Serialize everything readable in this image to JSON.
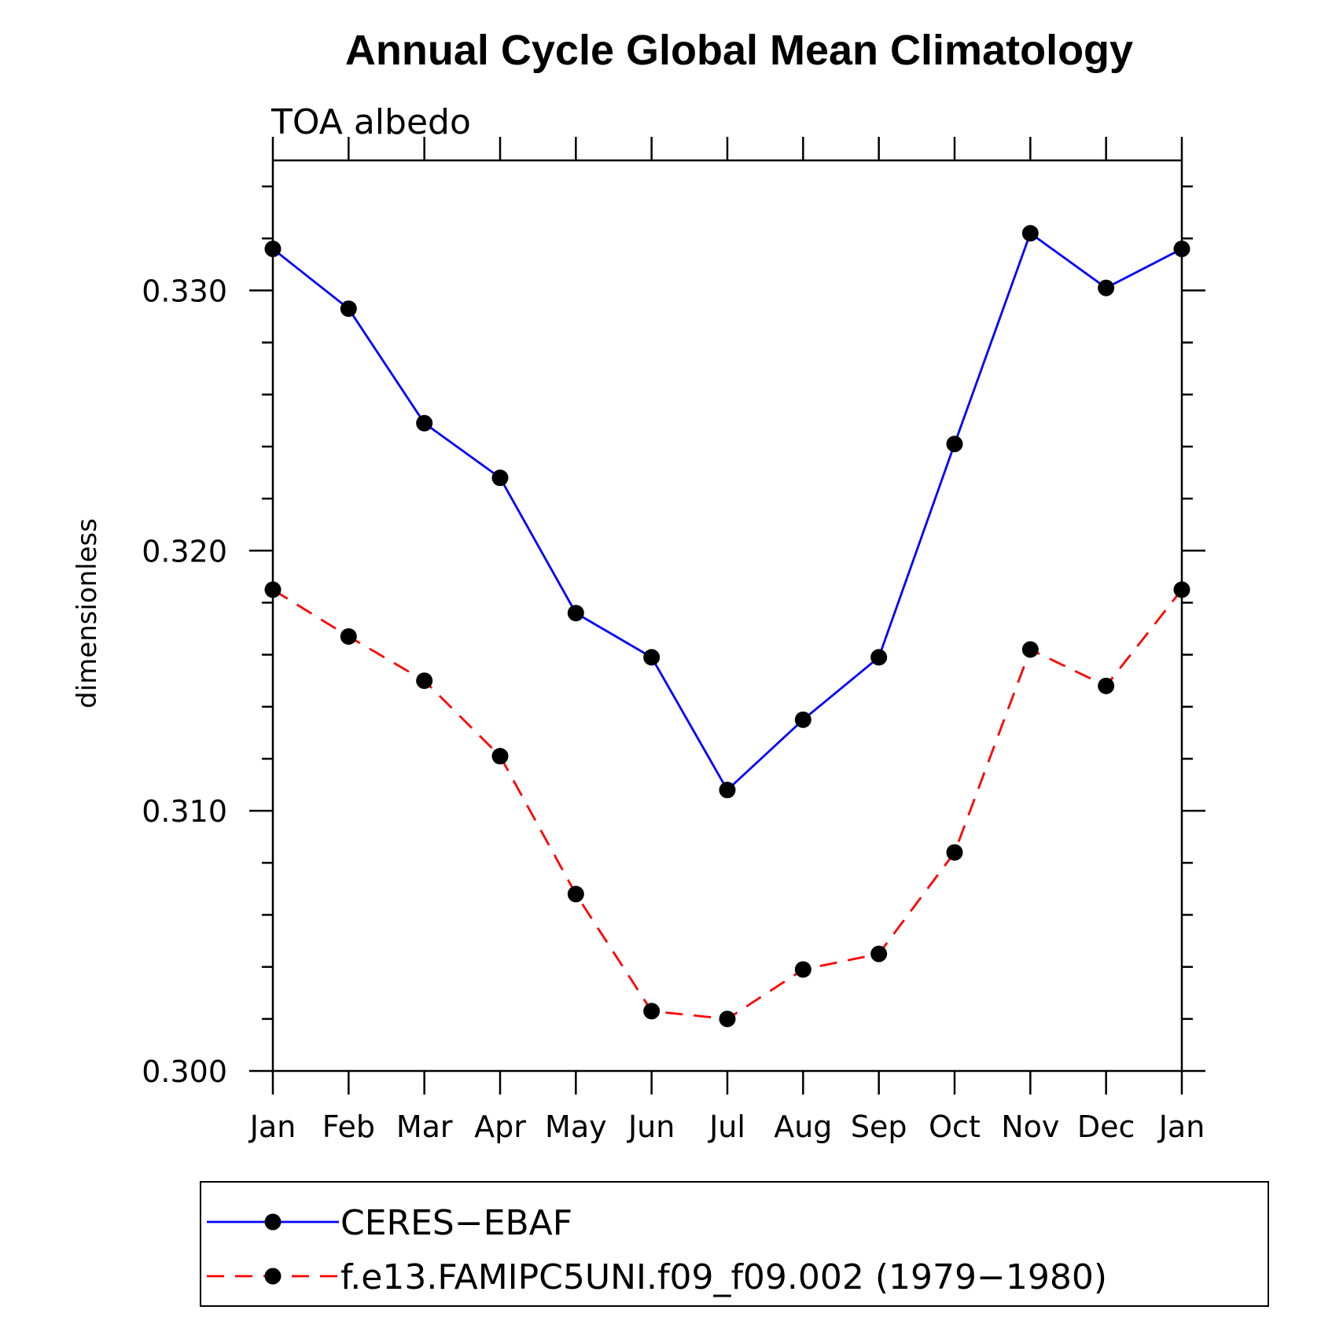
{
  "chart_data": {
    "type": "line",
    "title": "Annual Cycle Global Mean Climatology",
    "subtitle": "TOA albedo",
    "xlabel": "",
    "ylabel": "dimensionless",
    "categories": [
      "Jan",
      "Feb",
      "Mar",
      "Apr",
      "May",
      "Jun",
      "Jul",
      "Aug",
      "Sep",
      "Oct",
      "Nov",
      "Dec",
      "Jan"
    ],
    "yticks": [
      "0.300",
      "0.310",
      "0.320",
      "0.330"
    ],
    "ylim": [
      0.3,
      0.335
    ],
    "grid": false,
    "legend_position": "bottom",
    "series": [
      {
        "name": "CERES−EBAF",
        "color": "#0000ff",
        "line_style": "solid",
        "marker": "filled-circle",
        "values": [
          0.3316,
          0.3293,
          0.3249,
          0.3228,
          0.3176,
          0.3159,
          0.3108,
          0.3135,
          0.3159,
          0.3241,
          0.3322,
          0.3301,
          0.3316
        ]
      },
      {
        "name": "f.e13.FAMIPC5UNI.f09_f09.002 (1979−1980)",
        "color": "#ff0000",
        "line_style": "dashed",
        "marker": "filled-circle",
        "values": [
          0.3185,
          0.3167,
          0.315,
          0.3121,
          0.3068,
          0.3023,
          0.302,
          0.3039,
          0.3045,
          0.3084,
          0.3162,
          0.3148,
          0.3185
        ]
      }
    ]
  }
}
